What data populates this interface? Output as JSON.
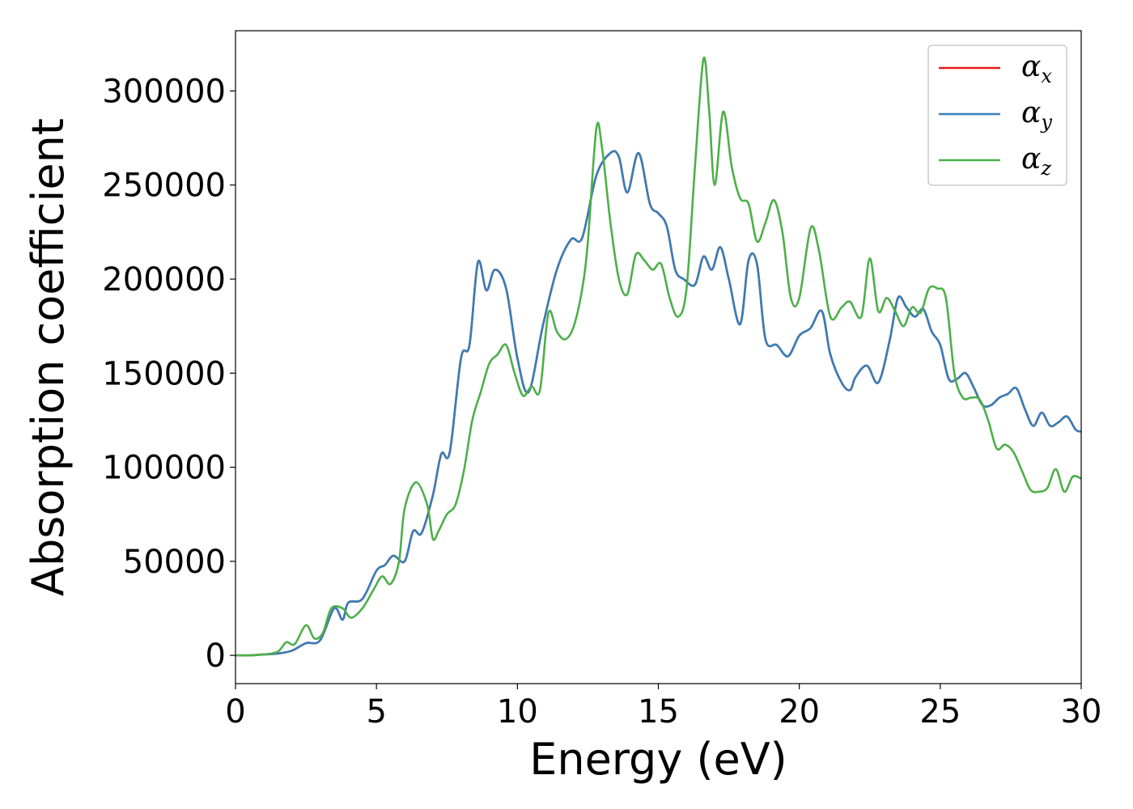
{
  "chart_data": {
    "type": "line",
    "xlabel": "Energy (eV)",
    "ylabel": "Absorption coefficient",
    "xlim": [
      0,
      30
    ],
    "ylim": [
      -15000,
      332000
    ],
    "xticks": [
      0,
      5,
      10,
      15,
      20,
      25,
      30
    ],
    "yticks": [
      0,
      50000,
      100000,
      150000,
      200000,
      250000,
      300000
    ],
    "xtick_labels": [
      "0",
      "5",
      "10",
      "15",
      "20",
      "25",
      "30"
    ],
    "ytick_labels": [
      "0",
      "50000",
      "100000",
      "150000",
      "200000",
      "250000",
      "300000"
    ],
    "grid": false,
    "legend_position": "top-right",
    "series": [
      {
        "name": "α",
        "subscript": "x",
        "color": "#e41a1c",
        "x": [
          0,
          0.5,
          1,
          1.5,
          2,
          2.5,
          3,
          3.5,
          3.8,
          4,
          4.5,
          5,
          5.3,
          5.6,
          6,
          6.3,
          6.6,
          7,
          7.3,
          7.6,
          8,
          8.3,
          8.6,
          8.9,
          9.2,
          9.6,
          10,
          10.4,
          10.9,
          11.4,
          11.9,
          12.3,
          12.8,
          13.3,
          13.6,
          13.9,
          14.3,
          14.7,
          15,
          15.3,
          15.6,
          15.9,
          16.3,
          16.6,
          16.9,
          17.2,
          17.5,
          17.9,
          18.2,
          18.5,
          18.8,
          19.2,
          19.6,
          20,
          20.4,
          20.8,
          21.1,
          21.5,
          21.8,
          22,
          22.4,
          22.8,
          23.2,
          23.5,
          23.8,
          24.1,
          24.4,
          24.7,
          25,
          25.3,
          25.6,
          25.9,
          26.2,
          26.5,
          26.8,
          27.1,
          27.4,
          27.7,
          28,
          28.3,
          28.6,
          28.9,
          29.2,
          29.5,
          29.8,
          30
        ],
        "y": [
          0,
          0,
          500,
          1000,
          2500,
          6500,
          8000,
          25000,
          19000,
          28000,
          30000,
          45000,
          48000,
          53000,
          50000,
          66000,
          65000,
          85000,
          107000,
          108000,
          158000,
          165000,
          209000,
          194000,
          205000,
          195000,
          158000,
          140000,
          175000,
          205000,
          221000,
          222000,
          255000,
          267000,
          265000,
          246000,
          267000,
          240000,
          235000,
          228000,
          205000,
          200000,
          197000,
          212000,
          205000,
          217000,
          200000,
          176000,
          210000,
          208000,
          168000,
          165000,
          159000,
          170000,
          174000,
          183000,
          160000,
          145000,
          141000,
          148000,
          154000,
          145000,
          167000,
          190000,
          185000,
          180000,
          184000,
          172000,
          165000,
          147000,
          147000,
          150000,
          142000,
          133000,
          133000,
          137000,
          139000,
          142000,
          131000,
          122000,
          129000,
          122000,
          124000,
          127000,
          120000,
          119000
        ]
      },
      {
        "name": "α",
        "subscript": "y",
        "color": "#377eb8",
        "x": [
          0,
          0.5,
          1,
          1.5,
          2,
          2.5,
          3,
          3.5,
          3.8,
          4,
          4.5,
          5,
          5.3,
          5.6,
          6,
          6.3,
          6.6,
          7,
          7.3,
          7.6,
          8,
          8.3,
          8.6,
          8.9,
          9.2,
          9.6,
          10,
          10.4,
          10.9,
          11.4,
          11.9,
          12.3,
          12.8,
          13.3,
          13.6,
          13.9,
          14.3,
          14.7,
          15,
          15.3,
          15.6,
          15.9,
          16.3,
          16.6,
          16.9,
          17.2,
          17.5,
          17.9,
          18.2,
          18.5,
          18.8,
          19.2,
          19.6,
          20,
          20.4,
          20.8,
          21.1,
          21.5,
          21.8,
          22,
          22.4,
          22.8,
          23.2,
          23.5,
          23.8,
          24.1,
          24.4,
          24.7,
          25,
          25.3,
          25.6,
          25.9,
          26.2,
          26.5,
          26.8,
          27.1,
          27.4,
          27.7,
          28,
          28.3,
          28.6,
          28.9,
          29.2,
          29.5,
          29.8,
          30
        ],
        "y": [
          0,
          0,
          500,
          1000,
          2500,
          6500,
          8000,
          25000,
          19000,
          28000,
          30000,
          45000,
          48000,
          53000,
          50000,
          66000,
          65000,
          85000,
          107000,
          108000,
          158000,
          165000,
          209000,
          194000,
          205000,
          195000,
          158000,
          140000,
          175000,
          205000,
          221000,
          222000,
          255000,
          267000,
          265000,
          246000,
          267000,
          240000,
          235000,
          228000,
          205000,
          200000,
          197000,
          212000,
          205000,
          217000,
          200000,
          176000,
          210000,
          208000,
          168000,
          165000,
          159000,
          170000,
          174000,
          183000,
          160000,
          145000,
          141000,
          148000,
          154000,
          145000,
          167000,
          190000,
          185000,
          180000,
          184000,
          172000,
          165000,
          147000,
          147000,
          150000,
          142000,
          133000,
          133000,
          137000,
          139000,
          142000,
          131000,
          122000,
          129000,
          122000,
          124000,
          127000,
          120000,
          119000
        ]
      },
      {
        "name": "α",
        "subscript": "z",
        "color": "#4daf4a",
        "x": [
          0,
          0.5,
          1,
          1.5,
          1.8,
          2.1,
          2.5,
          2.8,
          3.1,
          3.4,
          3.8,
          4.1,
          4.5,
          4.9,
          5.2,
          5.5,
          5.8,
          6,
          6.4,
          6.8,
          7,
          7.2,
          7.5,
          7.8,
          8.1,
          8.4,
          8.7,
          9,
          9.3,
          9.6,
          9.9,
          10.2,
          10.5,
          10.8,
          11.1,
          11.4,
          11.7,
          12,
          12.3,
          12.5,
          12.8,
          13,
          13.3,
          13.6,
          13.9,
          14.2,
          14.5,
          14.8,
          15.1,
          15.4,
          15.7,
          16,
          16.3,
          16.6,
          16.8,
          17,
          17.3,
          17.6,
          17.9,
          18.2,
          18.5,
          18.8,
          19.1,
          19.4,
          19.7,
          20,
          20.4,
          20.7,
          21.1,
          21.5,
          21.8,
          22.2,
          22.5,
          22.8,
          23.1,
          23.4,
          23.7,
          24,
          24.3,
          24.6,
          24.9,
          25.2,
          25.5,
          25.8,
          26.1,
          26.4,
          26.7,
          27,
          27.3,
          27.6,
          27.9,
          28.2,
          28.5,
          28.8,
          29.1,
          29.4,
          29.7,
          30
        ],
        "y": [
          0,
          0,
          500,
          2000,
          7000,
          6000,
          16000,
          9000,
          12000,
          25000,
          25000,
          20000,
          25000,
          35000,
          42000,
          38000,
          50000,
          78000,
          92000,
          80000,
          62000,
          66000,
          75000,
          80000,
          98000,
          125000,
          140000,
          155000,
          160000,
          165000,
          150000,
          138000,
          143000,
          141000,
          182000,
          172000,
          168000,
          175000,
          195000,
          220000,
          280000,
          270000,
          230000,
          200000,
          192000,
          213000,
          210000,
          205000,
          208000,
          190000,
          180000,
          195000,
          260000,
          317000,
          290000,
          250000,
          289000,
          260000,
          243000,
          240000,
          220000,
          230000,
          242000,
          225000,
          190000,
          190000,
          227000,
          215000,
          180000,
          185000,
          188000,
          180000,
          211000,
          183000,
          190000,
          183000,
          175000,
          185000,
          182000,
          195000,
          195000,
          190000,
          150000,
          137000,
          137000,
          136000,
          125000,
          110000,
          112000,
          108000,
          98000,
          88000,
          87000,
          89000,
          99000,
          87000,
          95000,
          94000
        ]
      }
    ]
  }
}
